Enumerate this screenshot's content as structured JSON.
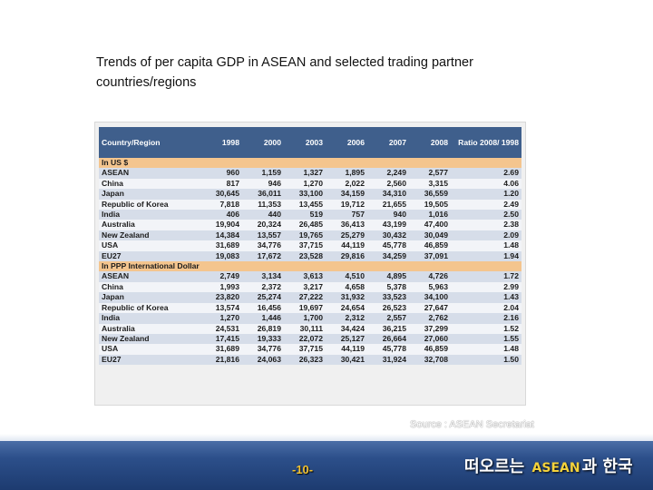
{
  "slide": {
    "title": "Trends of per capita GDP in ASEAN and selected trading partner countries/regions",
    "source": "Source : ASEAN Secretariat",
    "page_number": "-10-",
    "brand": {
      "prefix": "떠오르는",
      "middle": "ASEAN",
      "suffix": "과  한국"
    }
  },
  "table": {
    "headers": [
      "Country/Region",
      "1998",
      "2000",
      "2003",
      "2006",
      "2007",
      "2008",
      "Ratio 2008/ 1998"
    ],
    "sections": [
      {
        "label": "In US $",
        "rows": [
          [
            "ASEAN",
            "960",
            "1,159",
            "1,327",
            "1,895",
            "2,249",
            "2,577",
            "2.69"
          ],
          [
            "China",
            "817",
            "946",
            "1,270",
            "2,022",
            "2,560",
            "3,315",
            "4.06"
          ],
          [
            "Japan",
            "30,645",
            "36,011",
            "33,100",
            "34,159",
            "34,310",
            "36,559",
            "1.20"
          ],
          [
            "Republic of Korea",
            "7,818",
            "11,353",
            "13,455",
            "19,712",
            "21,655",
            "19,505",
            "2.49"
          ],
          [
            "India",
            "406",
            "440",
            "519",
            "757",
            "940",
            "1,016",
            "2.50"
          ],
          [
            "Australia",
            "19,904",
            "20,324",
            "26,485",
            "36,413",
            "43,199",
            "47,400",
            "2.38"
          ],
          [
            "New Zealand",
            "14,384",
            "13,557",
            "19,765",
            "25,279",
            "30,432",
            "30,049",
            "2.09"
          ],
          [
            "USA",
            "31,689",
            "34,776",
            "37,715",
            "44,119",
            "45,778",
            "46,859",
            "1.48"
          ],
          [
            "EU27",
            "19,083",
            "17,672",
            "23,528",
            "29,816",
            "34,259",
            "37,091",
            "1.94"
          ]
        ]
      },
      {
        "label": "In PPP International Dollar",
        "rows": [
          [
            "ASEAN",
            "2,749",
            "3,134",
            "3,613",
            "4,510",
            "4,895",
            "4,726",
            "1.72"
          ],
          [
            "China",
            "1,993",
            "2,372",
            "3,217",
            "4,658",
            "5,378",
            "5,963",
            "2.99"
          ],
          [
            "Japan",
            "23,820",
            "25,274",
            "27,222",
            "31,932",
            "33,523",
            "34,100",
            "1.43"
          ],
          [
            "Republic of Korea",
            "13,574",
            "16,456",
            "19,697",
            "24,654",
            "26,523",
            "27,647",
            "2.04"
          ],
          [
            "India",
            "1,270",
            "1,446",
            "1,700",
            "2,312",
            "2,557",
            "2,762",
            "2.16"
          ],
          [
            "Australia",
            "24,531",
            "26,819",
            "30,111",
            "34,424",
            "36,215",
            "37,299",
            "1.52"
          ],
          [
            "New Zealand",
            "17,415",
            "19,333",
            "22,072",
            "25,127",
            "26,664",
            "27,060",
            "1.55"
          ],
          [
            "USA",
            "31,689",
            "34,776",
            "37,715",
            "44,119",
            "45,778",
            "46,859",
            "1.48"
          ],
          [
            "EU27",
            "21,816",
            "24,063",
            "26,323",
            "30,421",
            "31,924",
            "32,708",
            "1.50"
          ]
        ]
      }
    ]
  }
}
